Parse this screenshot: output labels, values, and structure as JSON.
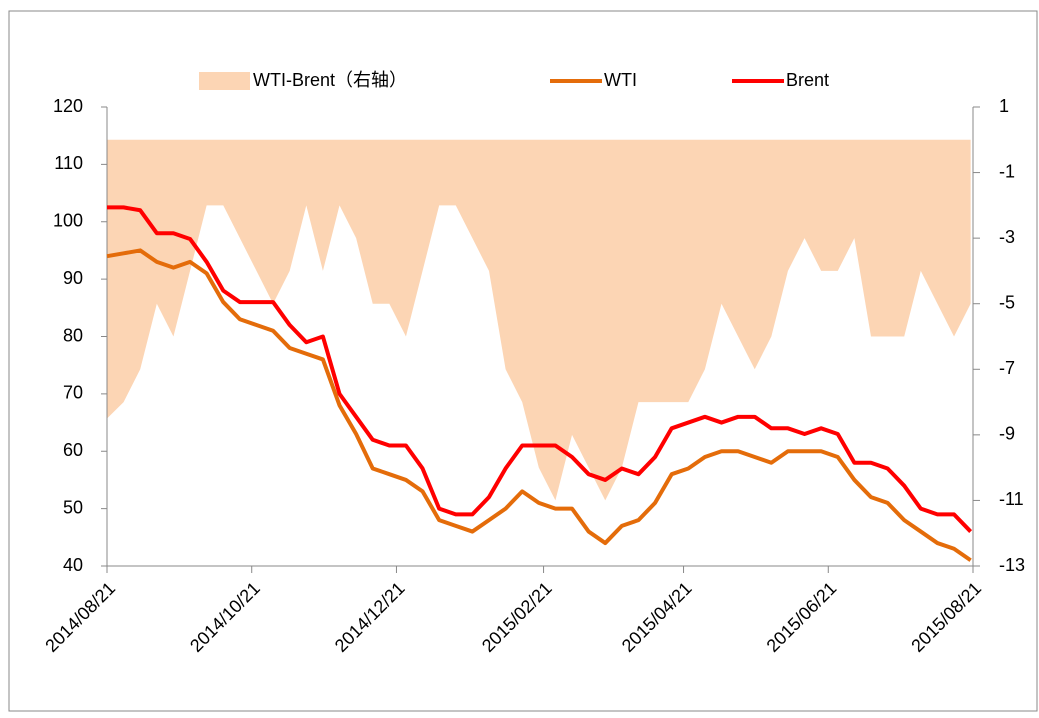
{
  "chart_data": {
    "type": "combo",
    "legend": "top",
    "x": [
      "2014/08/21",
      "2014/08/28",
      "2014/09/04",
      "2014/09/11",
      "2014/09/18",
      "2014/09/25",
      "2014/10/02",
      "2014/10/09",
      "2014/10/16",
      "2014/10/23",
      "2014/10/30",
      "2014/11/06",
      "2014/11/13",
      "2014/11/20",
      "2014/11/27",
      "2014/12/04",
      "2014/12/11",
      "2014/12/18",
      "2014/12/25",
      "2015/01/01",
      "2015/01/08",
      "2015/01/15",
      "2015/01/22",
      "2015/01/29",
      "2015/02/05",
      "2015/02/12",
      "2015/02/19",
      "2015/02/26",
      "2015/03/05",
      "2015/03/12",
      "2015/03/19",
      "2015/03/26",
      "2015/04/02",
      "2015/04/09",
      "2015/04/16",
      "2015/04/23",
      "2015/04/30",
      "2015/05/07",
      "2015/05/14",
      "2015/05/21",
      "2015/05/28",
      "2015/06/04",
      "2015/06/11",
      "2015/06/18",
      "2015/06/25",
      "2015/07/02",
      "2015/07/09",
      "2015/07/16",
      "2015/07/23",
      "2015/07/30",
      "2015/08/06",
      "2015/08/13",
      "2015/08/20"
    ],
    "series": [
      {
        "name": "WTI-Brent（右轴）",
        "kind": "area",
        "axis": "y2",
        "color": "#fcd5b4",
        "values": [
          -8.5,
          -8,
          -7,
          -5,
          -6,
          -4,
          -2,
          -2,
          -3,
          -4,
          -5,
          -4,
          -2,
          -4,
          -2,
          -3,
          -5,
          -5,
          -6,
          -4,
          -2,
          -2,
          -3,
          -4,
          -7,
          -8,
          -10,
          -11,
          -9,
          -10,
          -11,
          -10,
          -8,
          -8,
          -8,
          -8,
          -7,
          -5,
          -6,
          -7,
          -6,
          -4,
          -3,
          -4,
          -4,
          -3,
          -6,
          -6,
          -6,
          -4,
          -5,
          -6,
          -5
        ]
      },
      {
        "name": "WTI",
        "kind": "line",
        "color": "#e46c0a",
        "values": [
          94,
          94.5,
          95,
          93,
          92,
          93,
          91,
          86,
          83,
          82,
          81,
          78,
          77,
          76,
          68,
          63,
          57,
          56,
          55,
          53,
          48,
          47,
          46,
          48,
          50,
          53,
          51,
          50,
          50,
          46,
          44,
          47,
          48,
          51,
          56,
          57,
          59,
          60,
          60,
          59,
          58,
          60,
          60,
          60,
          59,
          55,
          52,
          51,
          48,
          46,
          44,
          43,
          41
        ]
      },
      {
        "name": "Brent",
        "kind": "line",
        "color": "#ff0000",
        "values": [
          102.5,
          102.5,
          102,
          98,
          98,
          97,
          93,
          88,
          86,
          86,
          86,
          82,
          79,
          80,
          70,
          66,
          62,
          61,
          61,
          57,
          50,
          49,
          49,
          52,
          57,
          61,
          61,
          61,
          59,
          56,
          55,
          57,
          56,
          59,
          64,
          65,
          66,
          65,
          66,
          66,
          64,
          64,
          63,
          64,
          63,
          58,
          58,
          57,
          54,
          50,
          49,
          49,
          46
        ]
      }
    ],
    "xlim": [
      "2014/08/21",
      "2015/08/21"
    ],
    "xticks": [
      "2014/08/21",
      "2014/10/21",
      "2014/12/21",
      "2015/02/21",
      "2015/04/21",
      "2015/06/21",
      "2015/08/21"
    ],
    "ylim": [
      40,
      120
    ],
    "yticks": [
      40,
      50,
      60,
      70,
      80,
      90,
      100,
      110,
      120
    ],
    "y2lim": [
      -13,
      1
    ],
    "y2ticks": [
      1,
      -1,
      -3,
      -5,
      -7,
      -9,
      -11,
      -13
    ]
  }
}
